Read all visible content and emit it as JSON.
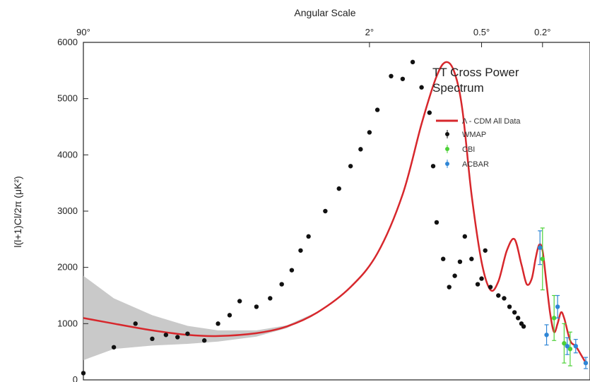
{
  "chart_data": {
    "type": "scatter",
    "title_lines": [
      "TT Cross Power",
      "Spectrum"
    ],
    "top_axis": {
      "label": "Angular Scale",
      "ticks": [
        {
          "label": "90°",
          "ell": 2
        },
        {
          "label": "2°",
          "ell": 90
        },
        {
          "label": "0.5°",
          "ell": 400
        },
        {
          "label": "0.2°",
          "ell": 900
        }
      ]
    },
    "y_axis": {
      "label": "l(l+1)Cl/2π (μK²)",
      "ylim": [
        0,
        6000
      ],
      "ticks": [
        0,
        1000,
        2000,
        3000,
        4000,
        5000,
        6000
      ]
    },
    "x_range_ell": [
      2,
      1600
    ],
    "x_scale": "log",
    "legend": [
      {
        "label": "Λ - CDM All Data",
        "color": "#d7272c",
        "kind": "line"
      },
      {
        "label": "WMAP",
        "color": "#111111",
        "kind": "point"
      },
      {
        "label": "CBI",
        "color": "#4cd137",
        "kind": "point"
      },
      {
        "label": "ACBAR",
        "color": "#2f86d6",
        "kind": "point"
      }
    ],
    "series": [
      {
        "name": "Λ - CDM All Data",
        "kind": "line",
        "color": "#d7272c",
        "x": [
          2,
          3,
          5,
          8,
          12,
          20,
          30,
          45,
          70,
          100,
          140,
          180,
          220,
          250,
          280,
          310,
          350,
          400,
          450,
          500,
          560,
          620,
          680,
          730,
          780,
          820,
          860,
          900,
          950,
          1000,
          1050,
          1100,
          1150,
          1200,
          1300,
          1400,
          1500,
          1600
        ],
        "y": [
          1100,
          1000,
          880,
          800,
          780,
          830,
          950,
          1200,
          1650,
          2250,
          3300,
          4550,
          5400,
          5650,
          5450,
          4800,
          3300,
          2100,
          1600,
          1750,
          2300,
          2500,
          2050,
          1700,
          1800,
          2150,
          2400,
          2300,
          1700,
          1150,
          850,
          1000,
          1200,
          1100,
          700,
          600,
          450,
          300
        ]
      },
      {
        "name": "Cosmic variance band",
        "kind": "band",
        "color": "#bfbfbf",
        "x": [
          2,
          3,
          5,
          8,
          12,
          20,
          30,
          45
        ],
        "upper": [
          1850,
          1450,
          1150,
          960,
          880,
          880,
          970,
          1210
        ],
        "lower": [
          350,
          550,
          610,
          640,
          680,
          770,
          920,
          1190
        ]
      },
      {
        "name": "WMAP",
        "kind": "points",
        "color": "#111111",
        "x": [
          2,
          3,
          4,
          5,
          6,
          7,
          8,
          10,
          12,
          14,
          16,
          20,
          24,
          28,
          32,
          36,
          40,
          50,
          60,
          70,
          80,
          90,
          100,
          120,
          140,
          160,
          180,
          200,
          210,
          220,
          240,
          260,
          280,
          300,
          320,
          350,
          380,
          400,
          420,
          450,
          500,
          540,
          580,
          620,
          650,
          680,
          700
        ],
        "y": [
          120,
          580,
          1000,
          730,
          800,
          760,
          820,
          700,
          1000,
          1150,
          1400,
          1300,
          1450,
          1700,
          1950,
          2300,
          2550,
          3000,
          3400,
          3800,
          4100,
          4400,
          4800,
          5400,
          5350,
          5650,
          5200,
          4750,
          3800,
          2800,
          2150,
          1650,
          1850,
          2100,
          2550,
          2150,
          1700,
          1800,
          2300,
          1650,
          1500,
          1450,
          1300,
          1200,
          1100,
          1000,
          950
        ]
      },
      {
        "name": "CBI",
        "kind": "points",
        "color": "#4cd137",
        "x": [
          900,
          1050,
          1200,
          1300
        ],
        "y": [
          2150,
          1100,
          650,
          550
        ],
        "err": [
          550,
          400,
          350,
          300
        ]
      },
      {
        "name": "ACBAR",
        "kind": "points",
        "color": "#2f86d6",
        "x": [
          870,
          950,
          1100,
          1250,
          1400,
          1600
        ],
        "y": [
          2350,
          800,
          1300,
          600,
          600,
          300
        ],
        "err": [
          300,
          180,
          200,
          150,
          120,
          100
        ]
      }
    ]
  }
}
